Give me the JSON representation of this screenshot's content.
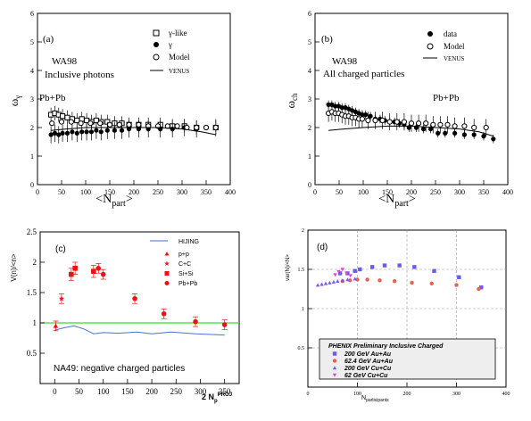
{
  "chart_data": [
    {
      "id": "a",
      "type": "scatter",
      "panel_label": "(a)",
      "xlabel": "<N",
      "xlabel_sub": "part",
      "xlabel_close": ">",
      "ylabel": "ω",
      "ylabel_sub": "γ",
      "xlim": [
        0,
        400
      ],
      "ylim": [
        0,
        6
      ],
      "xticks": [
        0,
        50,
        100,
        150,
        200,
        250,
        300,
        350,
        400
      ],
      "yticks": [
        0,
        1,
        2,
        3,
        4,
        5,
        6
      ],
      "annotations": [
        "WA98",
        "Inclusive photons",
        "Pb+Pb"
      ],
      "legend": [
        {
          "label": "γ-like",
          "marker": "open-square"
        },
        {
          "label": "γ",
          "marker": "filled-circle"
        },
        {
          "label": "Model",
          "marker": "open-circle"
        },
        {
          "label": "VENUS",
          "marker": "line"
        }
      ],
      "series": [
        {
          "name": "γ-like",
          "marker": "open-square",
          "color": "#000000",
          "x": [
            28,
            36,
            44,
            52,
            62,
            72,
            82,
            92,
            102,
            112,
            122,
            132,
            145,
            160,
            175,
            190,
            210,
            230,
            255,
            280,
            305,
            330,
            370
          ],
          "y": [
            2.45,
            2.5,
            2.45,
            2.4,
            2.35,
            2.3,
            2.25,
            2.3,
            2.25,
            2.2,
            2.25,
            2.2,
            2.2,
            2.15,
            2.15,
            2.1,
            2.1,
            2.1,
            2.1,
            2.05,
            2.05,
            2.0,
            2.0
          ],
          "err": [
            0.25,
            0.25,
            0.25,
            0.25,
            0.25,
            0.25,
            0.25,
            0.25,
            0.25,
            0.25,
            0.25,
            0.25,
            0.25,
            0.25,
            0.25,
            0.25,
            0.25,
            0.25,
            0.25,
            0.25,
            0.25,
            0.25,
            0.25
          ]
        },
        {
          "name": "γ",
          "marker": "filled-circle",
          "color": "#000000",
          "x": [
            28,
            36,
            44,
            52,
            62,
            72,
            82,
            92,
            102,
            112,
            122,
            132,
            145,
            160,
            175,
            190,
            210,
            230,
            255,
            280,
            305,
            330,
            370
          ],
          "y": [
            1.75,
            1.8,
            1.75,
            1.8,
            1.8,
            1.85,
            1.8,
            1.85,
            1.85,
            1.85,
            1.9,
            1.85,
            1.9,
            1.9,
            1.9,
            1.95,
            1.95,
            1.95,
            1.95,
            1.95,
            2.0,
            1.95,
            2.0
          ],
          "err": [
            0.3,
            0.3,
            0.3,
            0.3,
            0.3,
            0.3,
            0.3,
            0.3,
            0.3,
            0.3,
            0.3,
            0.3,
            0.3,
            0.3,
            0.3,
            0.3,
            0.3,
            0.3,
            0.3,
            0.3,
            0.3,
            0.3,
            0.3
          ]
        },
        {
          "name": "Model",
          "marker": "open-circle",
          "color": "#000000",
          "x": [
            30,
            50,
            70,
            90,
            110,
            130,
            150,
            170,
            190,
            210,
            230,
            250,
            270,
            290,
            310,
            330,
            350,
            370
          ],
          "y": [
            2.15,
            2.2,
            2.2,
            2.15,
            2.15,
            2.15,
            2.1,
            2.1,
            2.1,
            2.1,
            2.05,
            2.05,
            2.05,
            2.05,
            2.0,
            2.0,
            2.0,
            2.0
          ],
          "err": []
        },
        {
          "name": "VENUS",
          "marker": "line",
          "color": "#000000",
          "x": [
            28,
            60,
            100,
            150,
            200,
            250,
            300,
            340,
            370
          ],
          "y": [
            1.9,
            1.95,
            2.0,
            2.0,
            2.0,
            2.0,
            1.95,
            1.85,
            1.75
          ],
          "err": []
        }
      ]
    },
    {
      "id": "b",
      "type": "scatter",
      "panel_label": "(b)",
      "xlabel": "<N",
      "xlabel_sub": "part",
      "xlabel_close": ">",
      "ylabel": "ω",
      "ylabel_sub": "ch",
      "xlim": [
        0,
        400
      ],
      "ylim": [
        0,
        6
      ],
      "xticks": [
        0,
        50,
        100,
        150,
        200,
        250,
        300,
        350,
        400
      ],
      "yticks": [
        0,
        1,
        2,
        3,
        4,
        5,
        6
      ],
      "annotations": [
        "WA98",
        "All charged particles",
        "Pb+Pb"
      ],
      "legend": [
        {
          "label": "data",
          "marker": "filled-circle"
        },
        {
          "label": "Model",
          "marker": "open-circle"
        },
        {
          "label": "VENUS",
          "marker": "line"
        }
      ],
      "series": [
        {
          "name": "data",
          "marker": "filled-circle",
          "color": "#000000",
          "x": [
            28,
            35,
            42,
            49,
            56,
            63,
            70,
            77,
            84,
            91,
            98,
            105,
            115,
            125,
            135,
            145,
            155,
            165,
            175,
            185,
            195,
            210,
            225,
            240,
            255,
            270,
            290,
            310,
            330,
            350,
            370
          ],
          "y": [
            2.8,
            2.8,
            2.75,
            2.75,
            2.7,
            2.7,
            2.65,
            2.6,
            2.55,
            2.5,
            2.45,
            2.45,
            2.4,
            2.3,
            2.3,
            2.25,
            2.2,
            2.2,
            2.15,
            2.1,
            2.0,
            2.0,
            1.95,
            1.95,
            1.8,
            1.8,
            1.8,
            1.75,
            1.75,
            1.7,
            1.6
          ],
          "err": [
            0.15,
            0.15,
            0.15,
            0.15,
            0.15,
            0.15,
            0.15,
            0.15,
            0.15,
            0.15,
            0.15,
            0.15,
            0.15,
            0.15,
            0.15,
            0.15,
            0.15,
            0.15,
            0.15,
            0.15,
            0.15,
            0.15,
            0.15,
            0.15,
            0.15,
            0.15,
            0.15,
            0.15,
            0.15,
            0.15,
            0.15
          ]
        },
        {
          "name": "Model",
          "marker": "open-circle",
          "color": "#000000",
          "x": [
            28,
            35,
            42,
            49,
            56,
            63,
            70,
            77,
            84,
            91,
            98,
            110,
            125,
            140,
            155,
            170,
            185,
            200,
            215,
            230,
            245,
            260,
            275,
            290,
            310,
            330,
            355
          ],
          "y": [
            2.5,
            2.55,
            2.5,
            2.5,
            2.45,
            2.4,
            2.4,
            2.35,
            2.35,
            2.3,
            2.3,
            2.25,
            2.25,
            2.25,
            2.2,
            2.2,
            2.2,
            2.15,
            2.15,
            2.15,
            2.1,
            2.1,
            2.1,
            2.05,
            2.05,
            2.0,
            2.0
          ],
          "err": [
            0.3,
            0.3,
            0.3,
            0.3,
            0.3,
            0.3,
            0.3,
            0.3,
            0.3,
            0.3,
            0.3,
            0.3,
            0.3,
            0.3,
            0.3,
            0.3,
            0.3,
            0.3,
            0.3,
            0.3,
            0.3,
            0.3,
            0.3,
            0.3,
            0.3,
            0.3,
            0.3
          ]
        },
        {
          "name": "VENUS",
          "marker": "line",
          "color": "#000000",
          "x": [
            28,
            60,
            100,
            150,
            200,
            250,
            300,
            340,
            370
          ],
          "y": [
            1.9,
            1.95,
            2.0,
            2.05,
            2.05,
            2.0,
            1.95,
            1.85,
            1.7
          ],
          "err": []
        }
      ]
    },
    {
      "id": "c",
      "type": "scatter",
      "panel_label": "(c)",
      "ylabel": "V(n)/<n>",
      "xlabel": "2 N",
      "xlabel_sub": "p",
      "xlabel_sup": "PROJ",
      "xlim": [
        -30,
        380
      ],
      "ylim": [
        0,
        2.5
      ],
      "xticks": [
        0,
        50,
        100,
        150,
        200,
        250,
        300,
        350
      ],
      "yticks": [
        0.5,
        1,
        1.5,
        2,
        2.5
      ],
      "reference_line": 1,
      "reference_color": "#33dd33",
      "annotations": [
        "NA49: negative charged particles"
      ],
      "legend": [
        {
          "label": "HIJING",
          "marker": "line",
          "color": "#4a6fd9"
        },
        {
          "label": "p+p",
          "marker": "triangle",
          "color": "#ee1111"
        },
        {
          "label": "C+C",
          "marker": "star",
          "color": "#ee1111"
        },
        {
          "label": "Si+Si",
          "marker": "square",
          "color": "#ee1111"
        },
        {
          "label": "Pb+Pb",
          "marker": "circle",
          "color": "#ee1111"
        }
      ],
      "series": [
        {
          "name": "HIJING",
          "marker": "line",
          "color": "#4a6fd9",
          "x": [
            0,
            20,
            40,
            60,
            80,
            100,
            130,
            170,
            200,
            240,
            290,
            350
          ],
          "y": [
            0.88,
            0.92,
            0.95,
            0.9,
            0.82,
            0.84,
            0.83,
            0.85,
            0.82,
            0.85,
            0.82,
            0.8
          ],
          "err": []
        },
        {
          "name": "p+p",
          "marker": "triangle",
          "color": "#ee1111",
          "x": [
            2
          ],
          "y": [
            0.95
          ],
          "err": [
            0.08
          ]
        },
        {
          "name": "C+C",
          "marker": "star",
          "color": "#ee1111",
          "x": [
            14
          ],
          "y": [
            1.4
          ],
          "err": [
            0.08
          ]
        },
        {
          "name": "Si+Si",
          "marker": "square",
          "color": "#ee1111",
          "x": [
            34,
            42,
            80
          ],
          "y": [
            1.8,
            1.9,
            1.85
          ],
          "err": [
            0.1,
            0.1,
            0.1
          ]
        },
        {
          "name": "Pb+Pb",
          "marker": "circle",
          "color": "#ee1111",
          "x": [
            90,
            100,
            165,
            225,
            290,
            350
          ],
          "y": [
            1.9,
            1.8,
            1.4,
            1.15,
            1.02,
            0.97
          ],
          "err": [
            0.08,
            0.08,
            0.08,
            0.08,
            0.08,
            0.08
          ]
        }
      ]
    },
    {
      "id": "d",
      "type": "scatter",
      "panel_label": "(d)",
      "ylabel": "var(N)/<N>",
      "xlabel": "N",
      "xlabel_sub": "participants",
      "xlim": [
        0,
        400
      ],
      "ylim": [
        0,
        2
      ],
      "xticks": [
        0,
        100,
        200,
        300,
        400
      ],
      "yticks": [
        0.5,
        1,
        1.5,
        2
      ],
      "ytick_labels": [
        "0.5",
        "1",
        "1.5",
        "2"
      ],
      "grid": true,
      "legend_title": "PHENIX Preliminary Inclusive Charged",
      "legend": [
        {
          "label": "200 GeV Au+Au",
          "marker": "square",
          "color": "#6a5ae8"
        },
        {
          "label": "62.4 GeV Au+Au",
          "marker": "circle",
          "color": "#e86050"
        },
        {
          "label": "200 GeV Cu+Cu",
          "marker": "triangle",
          "color": "#7a5ae8"
        },
        {
          "label": "62 GeV Cu+Cu",
          "marker": "triangle-down",
          "color": "#dd44dd"
        }
      ],
      "series": [
        {
          "name": "200 GeV Au+Au",
          "marker": "square",
          "color": "#6a5ae8",
          "x": [
            65,
            80,
            95,
            105,
            130,
            155,
            185,
            215,
            255,
            305,
            350
          ],
          "y": [
            1.45,
            1.45,
            1.48,
            1.5,
            1.53,
            1.55,
            1.55,
            1.53,
            1.48,
            1.4,
            1.27
          ],
          "err": []
        },
        {
          "name": "62.4 GeV Au+Au",
          "marker": "circle",
          "color": "#e86050",
          "x": [
            70,
            85,
            100,
            120,
            145,
            175,
            210,
            250,
            300,
            345
          ],
          "y": [
            1.35,
            1.36,
            1.37,
            1.37,
            1.36,
            1.35,
            1.33,
            1.32,
            1.3,
            1.25
          ],
          "err": []
        },
        {
          "name": "200 GeV Cu+Cu",
          "marker": "triangle",
          "color": "#7a5ae8",
          "x": [
            20,
            28,
            36,
            44,
            52,
            60,
            70,
            80,
            95
          ],
          "y": [
            1.3,
            1.31,
            1.32,
            1.33,
            1.34,
            1.35,
            1.36,
            1.37,
            1.38
          ],
          "err": []
        },
        {
          "name": "62 GeV Cu+Cu",
          "marker": "triangle-down",
          "color": "#dd44dd",
          "x": [
            55,
            62,
            70,
            78,
            86
          ],
          "y": [
            1.43,
            1.47,
            1.5,
            1.45,
            1.42
          ],
          "err": []
        }
      ]
    }
  ]
}
